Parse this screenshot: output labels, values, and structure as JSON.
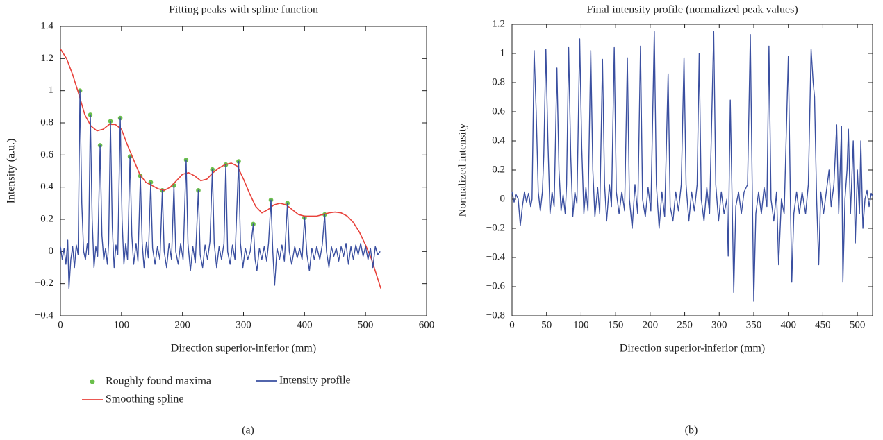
{
  "chart_data": [
    {
      "type": "line",
      "title": "Fitting peaks with spline function",
      "xlabel": "Direction superior-inferior (mm)",
      "ylabel": "Intensity (a.u.)",
      "caption": "(a)",
      "xlim": [
        0,
        600
      ],
      "xticks": [
        0,
        100,
        200,
        300,
        400,
        500,
        600
      ],
      "ylim": [
        -0.4,
        1.4
      ],
      "yticks": [
        {
          "value": -0.4,
          "label": "−0.4"
        },
        {
          "value": -0.2,
          "label": "−0.2"
        },
        0,
        0.2,
        0.4,
        0.6,
        0.8,
        1,
        1.2,
        1.4
      ],
      "legend": "bottom",
      "series": [
        {
          "name": "Roughly found maxima",
          "mode": "markers",
          "color": "#6abf4b",
          "x": [
            32,
            49,
            65,
            82,
            98,
            114,
            131,
            148,
            167,
            186,
            206,
            226,
            249,
            271,
            292,
            316,
            345,
            372,
            400,
            433
          ],
          "values": [
            1.0,
            0.85,
            0.66,
            0.81,
            0.83,
            0.59,
            0.47,
            0.43,
            0.38,
            0.41,
            0.57,
            0.38,
            0.51,
            0.54,
            0.56,
            0.17,
            0.32,
            0.3,
            0.21,
            0.23
          ]
        },
        {
          "name": "Smoothing spline",
          "mode": "lines",
          "color": "#e8413a",
          "x": [
            0,
            10,
            20,
            30,
            40,
            50,
            60,
            70,
            80,
            90,
            100,
            110,
            120,
            130,
            140,
            150,
            160,
            170,
            180,
            190,
            200,
            210,
            220,
            230,
            240,
            250,
            260,
            270,
            280,
            290,
            300,
            310,
            320,
            330,
            340,
            350,
            360,
            370,
            380,
            390,
            400,
            410,
            420,
            430,
            440,
            450,
            460,
            470,
            480,
            490,
            500,
            510,
            520,
            525
          ],
          "values": [
            1.26,
            1.2,
            1.1,
            0.98,
            0.85,
            0.78,
            0.75,
            0.76,
            0.79,
            0.79,
            0.76,
            0.66,
            0.57,
            0.48,
            0.43,
            0.41,
            0.39,
            0.38,
            0.4,
            0.44,
            0.48,
            0.49,
            0.47,
            0.44,
            0.45,
            0.49,
            0.52,
            0.54,
            0.55,
            0.53,
            0.45,
            0.36,
            0.28,
            0.24,
            0.26,
            0.29,
            0.3,
            0.29,
            0.26,
            0.23,
            0.22,
            0.22,
            0.22,
            0.23,
            0.24,
            0.245,
            0.24,
            0.22,
            0.18,
            0.12,
            0.04,
            -0.05,
            -0.17,
            -0.23
          ]
        },
        {
          "name": "Intensity profile",
          "mode": "lines",
          "color": "#3a4fa0",
          "x": [
            0,
            3,
            6,
            9,
            12,
            14,
            17,
            20,
            23,
            26,
            29,
            32,
            35,
            38,
            41,
            44,
            46,
            49,
            52,
            55,
            58,
            61,
            65,
            68,
            71,
            74,
            77,
            79,
            82,
            85,
            88,
            91,
            94,
            98,
            101,
            104,
            107,
            110,
            114,
            117,
            120,
            124,
            127,
            131,
            134,
            137,
            141,
            144,
            148,
            151,
            155,
            159,
            163,
            167,
            170,
            174,
            178,
            182,
            186,
            189,
            193,
            197,
            201,
            206,
            209,
            213,
            217,
            221,
            226,
            229,
            233,
            237,
            241,
            245,
            249,
            252,
            256,
            260,
            264,
            268,
            271,
            274,
            278,
            282,
            286,
            292,
            295,
            299,
            303,
            307,
            311,
            316,
            319,
            322,
            326,
            330,
            334,
            338,
            341,
            345,
            348,
            351,
            355,
            359,
            363,
            367,
            372,
            375,
            379,
            384,
            388,
            392,
            396,
            400,
            404,
            408,
            412,
            416,
            420,
            425,
            429,
            433,
            436,
            440,
            444,
            448,
            452,
            456,
            460,
            464,
            468,
            472,
            476,
            480,
            484,
            488,
            492,
            496,
            500,
            504,
            508,
            512,
            516,
            520,
            524
          ],
          "values": [
            0.03,
            -0.05,
            0.02,
            -0.08,
            0.07,
            -0.23,
            -0.05,
            0.03,
            -0.1,
            0.04,
            -0.02,
            1.0,
            0.3,
            0.0,
            -0.05,
            0.05,
            -0.02,
            0.85,
            0.2,
            -0.1,
            0.03,
            -0.03,
            0.66,
            0.1,
            -0.05,
            0.02,
            -0.08,
            0.05,
            0.81,
            0.15,
            -0.1,
            0.04,
            -0.02,
            0.83,
            0.2,
            -0.08,
            0.05,
            -0.05,
            0.59,
            0.1,
            -0.08,
            0.05,
            -0.06,
            0.47,
            0.05,
            -0.1,
            0.06,
            -0.04,
            0.43,
            0.02,
            -0.08,
            0.03,
            -0.05,
            0.38,
            0.0,
            -0.1,
            0.05,
            -0.05,
            0.41,
            0.0,
            -0.08,
            0.05,
            -0.05,
            0.57,
            0.05,
            -0.12,
            0.03,
            -0.07,
            0.38,
            -0.02,
            -0.1,
            0.04,
            -0.05,
            0.06,
            0.51,
            0.05,
            -0.1,
            0.03,
            -0.05,
            0.05,
            0.54,
            0.0,
            -0.08,
            0.04,
            -0.05,
            0.56,
            0.05,
            -0.1,
            0.02,
            -0.05,
            0.0,
            0.17,
            -0.05,
            -0.12,
            0.02,
            -0.05,
            0.03,
            -0.06,
            0.05,
            0.32,
            0.0,
            -0.21,
            0.02,
            -0.05,
            0.04,
            -0.06,
            0.3,
            0.0,
            -0.08,
            0.03,
            -0.04,
            0.02,
            -0.05,
            0.21,
            -0.02,
            -0.12,
            0.02,
            -0.05,
            0.03,
            -0.05,
            0.04,
            0.23,
            0.0,
            -0.1,
            0.03,
            -0.03,
            0.02,
            -0.06,
            0.03,
            -0.03,
            0.05,
            -0.08,
            0.03,
            -0.05,
            0.04,
            -0.02,
            0.05,
            -0.03,
            0.03,
            -0.05,
            0.02,
            -0.1,
            0.03,
            -0.02,
            0.0
          ]
        }
      ]
    },
    {
      "type": "line",
      "title": "Final intensity profile (normalized peak values)",
      "xlabel": "Direction superior-inferior (mm)",
      "ylabel": "Normalized intensity",
      "caption": "(b)",
      "xlim": [
        0,
        522
      ],
      "xticks": [
        0,
        50,
        100,
        150,
        200,
        250,
        300,
        350,
        400,
        450,
        500
      ],
      "ylim": [
        -0.8,
        1.2
      ],
      "yticks": [
        {
          "value": -0.8,
          "label": "−0.8"
        },
        {
          "value": -0.6,
          "label": "−0.6"
        },
        {
          "value": -0.4,
          "label": "−0.4"
        },
        {
          "value": -0.2,
          "label": "−0.2"
        },
        0,
        0.2,
        0.4,
        0.6,
        0.8,
        1,
        1.2
      ],
      "series": [
        {
          "mode": "lines",
          "color": "#3a4fa0",
          "x": [
            0,
            3,
            6,
            9,
            12,
            15,
            18,
            21,
            24,
            27,
            29,
            32,
            35,
            38,
            41,
            44,
            46,
            49,
            52,
            55,
            58,
            61,
            65,
            68,
            71,
            74,
            77,
            79,
            82,
            85,
            88,
            91,
            94,
            98,
            101,
            104,
            107,
            110,
            114,
            117,
            120,
            124,
            127,
            131,
            134,
            137,
            141,
            144,
            148,
            151,
            155,
            159,
            163,
            167,
            170,
            174,
            178,
            182,
            186,
            189,
            193,
            197,
            201,
            206,
            209,
            213,
            217,
            221,
            226,
            229,
            233,
            237,
            241,
            245,
            249,
            252,
            256,
            260,
            264,
            268,
            271,
            274,
            278,
            282,
            286,
            292,
            295,
            299,
            303,
            307,
            311,
            313,
            316,
            319,
            321,
            324,
            328,
            332,
            336,
            341,
            345,
            348,
            350,
            353,
            357,
            361,
            365,
            369,
            372,
            375,
            379,
            383,
            386,
            390,
            394,
            400,
            403,
            405,
            408,
            412,
            416,
            420,
            425,
            429,
            433,
            436,
            438,
            441,
            444,
            447,
            451,
            455,
            459,
            462,
            466,
            470,
            473,
            477,
            479,
            482,
            485,
            487,
            490,
            494,
            497,
            500,
            503,
            505,
            508,
            511,
            514,
            517,
            520,
            522
          ],
          "values": [
            0.05,
            -0.02,
            0.03,
            0.0,
            -0.18,
            -0.05,
            0.05,
            -0.02,
            0.04,
            -0.05,
            0.0,
            1.02,
            0.6,
            0.05,
            -0.08,
            0.05,
            0.3,
            1.03,
            0.4,
            -0.1,
            0.05,
            -0.05,
            0.9,
            0.2,
            -0.08,
            0.03,
            -0.1,
            0.1,
            1.04,
            0.3,
            -0.12,
            0.05,
            -0.03,
            1.1,
            0.35,
            -0.1,
            0.08,
            -0.08,
            1.02,
            0.2,
            -0.12,
            0.08,
            -0.1,
            0.96,
            0.1,
            -0.15,
            0.1,
            -0.05,
            1.04,
            0.05,
            -0.1,
            0.05,
            -0.08,
            0.97,
            0.0,
            -0.2,
            0.1,
            -0.1,
            1.05,
            0.0,
            -0.12,
            0.08,
            -0.08,
            1.15,
            0.1,
            -0.2,
            0.05,
            -0.12,
            0.86,
            -0.05,
            -0.15,
            0.05,
            -0.08,
            0.1,
            0.97,
            0.1,
            -0.15,
            0.05,
            -0.08,
            0.1,
            1.0,
            0.0,
            -0.15,
            0.08,
            -0.1,
            1.15,
            0.1,
            -0.15,
            0.05,
            -0.1,
            0.0,
            -0.39,
            0.68,
            -0.1,
            -0.64,
            -0.05,
            0.05,
            -0.1,
            0.05,
            0.1,
            1.13,
            0.0,
            -0.7,
            -0.1,
            0.05,
            -0.1,
            0.08,
            -0.05,
            1.05,
            0.0,
            -0.15,
            0.05,
            -0.45,
            0.0,
            -0.1,
            0.98,
            0.0,
            -0.57,
            -0.1,
            0.05,
            -0.1,
            0.05,
            -0.1,
            0.1,
            1.03,
            0.8,
            0.7,
            0.0,
            -0.45,
            0.05,
            -0.1,
            0.05,
            0.2,
            -0.05,
            0.1,
            0.51,
            -0.1,
            0.5,
            -0.57,
            0.0,
            0.2,
            0.48,
            -0.1,
            0.4,
            -0.3,
            0.2,
            -0.1,
            0.4,
            -0.2,
            0.0,
            0.06,
            -0.05,
            0.04,
            0.02
          ]
        }
      ]
    }
  ]
}
